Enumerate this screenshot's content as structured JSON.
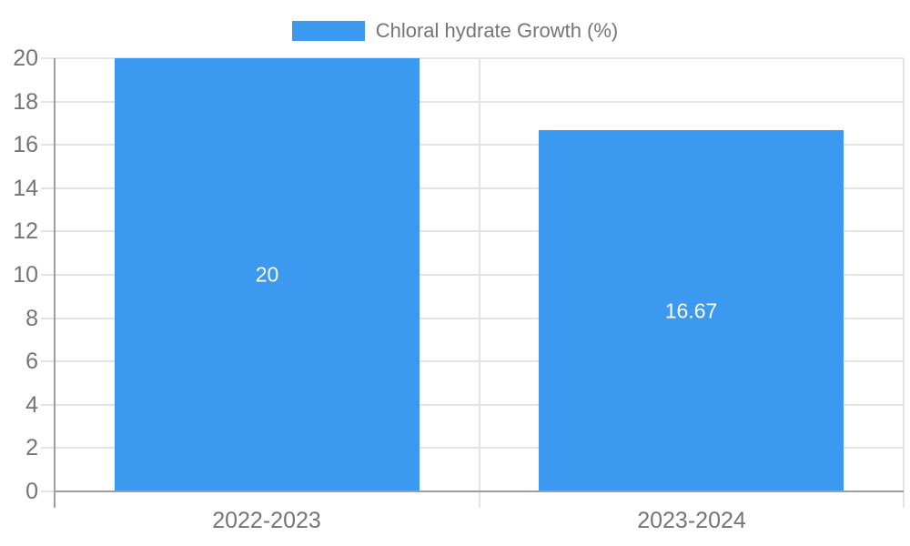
{
  "legend": {
    "label": "Chloral hydrate Growth (%)"
  },
  "colors": {
    "bar": "#3b99f0",
    "axis": "#9e9e9e",
    "grid": "#e4e4e4",
    "label": "#757575",
    "value_label": "#ffffff",
    "background": "#ffffff"
  },
  "chart_data": {
    "type": "bar",
    "title": "",
    "categories": [
      "2022-2023",
      "2023-2024"
    ],
    "series": [
      {
        "name": "Chloral hydrate Growth (%)",
        "values": [
          20,
          16.67
        ]
      }
    ],
    "value_labels": [
      "20",
      "16.67"
    ],
    "ylim": [
      0,
      20
    ],
    "ytick_step": 2,
    "yticks": [
      0,
      2,
      4,
      6,
      8,
      10,
      12,
      14,
      16,
      18,
      20
    ],
    "grid": "on",
    "legend_position": "top",
    "value_labels_inside_bars": true
  }
}
